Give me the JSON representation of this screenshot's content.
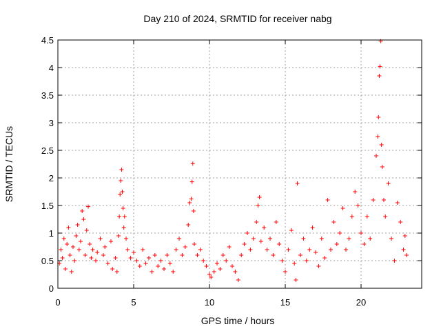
{
  "chart_data": {
    "type": "scatter",
    "title": "Day 210 of 2024, SRMTID for receiver nabg",
    "xlabel": "GPS time / hours",
    "ylabel": "SRMTID / TECUs",
    "xlim": [
      0,
      24
    ],
    "ylim": [
      0,
      4.5
    ],
    "xticks": [
      0,
      5,
      10,
      15,
      20
    ],
    "xtick_labels": [
      "0",
      "5",
      "10",
      "15",
      "20"
    ],
    "yticks": [
      0,
      0.5,
      1,
      1.5,
      2,
      2.5,
      3,
      3.5,
      4,
      4.5
    ],
    "ytick_labels": [
      "0",
      "0.5",
      "1",
      "1.5",
      "2",
      "2.5",
      "3",
      "3.5",
      "4",
      "4.5"
    ],
    "grid": true,
    "marker": "+",
    "color": "#ff0000",
    "series": [
      {
        "name": "SRMTID",
        "points": [
          [
            0.1,
            0.45
          ],
          [
            0.2,
            0.7
          ],
          [
            0.3,
            0.55
          ],
          [
            0.4,
            0.9
          ],
          [
            0.5,
            0.35
          ],
          [
            0.6,
            0.8
          ],
          [
            0.7,
            1.1
          ],
          [
            0.8,
            0.6
          ],
          [
            0.9,
            0.3
          ],
          [
            1.0,
            0.75
          ],
          [
            1.1,
            0.5
          ],
          [
            1.2,
            0.95
          ],
          [
            1.3,
            1.15
          ],
          [
            1.4,
            0.7
          ],
          [
            1.5,
            0.85
          ],
          [
            1.6,
            1.4
          ],
          [
            1.7,
            1.25
          ],
          [
            1.8,
            0.6
          ],
          [
            1.9,
            1.05
          ],
          [
            2.0,
            1.48
          ],
          [
            2.1,
            0.8
          ],
          [
            2.2,
            0.55
          ],
          [
            2.3,
            0.7
          ],
          [
            2.5,
            0.5
          ],
          [
            2.6,
            0.65
          ],
          [
            2.8,
            0.9
          ],
          [
            3.0,
            0.6
          ],
          [
            3.1,
            0.75
          ],
          [
            3.3,
            0.45
          ],
          [
            3.5,
            0.85
          ],
          [
            3.6,
            0.35
          ],
          [
            3.8,
            0.55
          ],
          [
            3.9,
            0.3
          ],
          [
            4.0,
            0.95
          ],
          [
            4.05,
            1.3
          ],
          [
            4.1,
            1.7
          ],
          [
            4.15,
            1.95
          ],
          [
            4.2,
            2.15
          ],
          [
            4.25,
            1.75
          ],
          [
            4.3,
            1.45
          ],
          [
            4.35,
            1.1
          ],
          [
            4.4,
            1.3
          ],
          [
            4.5,
            0.9
          ],
          [
            4.6,
            0.7
          ],
          [
            4.8,
            0.55
          ],
          [
            5.0,
            0.65
          ],
          [
            5.2,
            0.5
          ],
          [
            5.4,
            0.4
          ],
          [
            5.6,
            0.7
          ],
          [
            5.8,
            0.45
          ],
          [
            6.0,
            0.55
          ],
          [
            6.2,
            0.3
          ],
          [
            6.4,
            0.6
          ],
          [
            6.6,
            0.4
          ],
          [
            6.8,
            0.5
          ],
          [
            7.0,
            0.35
          ],
          [
            7.2,
            0.6
          ],
          [
            7.4,
            0.45
          ],
          [
            7.6,
            0.3
          ],
          [
            7.8,
            0.7
          ],
          [
            8.0,
            0.9
          ],
          [
            8.2,
            0.6
          ],
          [
            8.4,
            0.75
          ],
          [
            8.6,
            1.15
          ],
          [
            8.7,
            1.55
          ],
          [
            8.8,
            1.62
          ],
          [
            8.85,
            1.93
          ],
          [
            8.9,
            2.26
          ],
          [
            8.95,
            1.4
          ],
          [
            9.0,
            0.8
          ],
          [
            9.2,
            0.6
          ],
          [
            9.4,
            0.7
          ],
          [
            9.6,
            0.5
          ],
          [
            9.8,
            0.4
          ],
          [
            10.0,
            0.25
          ],
          [
            10.1,
            0.2
          ],
          [
            10.3,
            0.3
          ],
          [
            10.5,
            0.45
          ],
          [
            10.7,
            0.35
          ],
          [
            10.9,
            0.6
          ],
          [
            11.1,
            0.5
          ],
          [
            11.3,
            0.75
          ],
          [
            11.5,
            0.4
          ],
          [
            11.7,
            0.3
          ],
          [
            11.9,
            0.15
          ],
          [
            12.1,
            0.6
          ],
          [
            12.3,
            0.8
          ],
          [
            12.5,
            1.0
          ],
          [
            12.7,
            0.7
          ],
          [
            12.9,
            0.9
          ],
          [
            13.1,
            1.2
          ],
          [
            13.2,
            1.5
          ],
          [
            13.3,
            1.65
          ],
          [
            13.4,
            0.85
          ],
          [
            13.6,
            1.1
          ],
          [
            13.8,
            0.7
          ],
          [
            14.0,
            0.9
          ],
          [
            14.2,
            0.6
          ],
          [
            14.4,
            1.2
          ],
          [
            14.6,
            0.8
          ],
          [
            14.8,
            0.5
          ],
          [
            15.0,
            0.3
          ],
          [
            15.2,
            0.7
          ],
          [
            15.4,
            1.05
          ],
          [
            15.6,
            0.45
          ],
          [
            15.7,
            0.15
          ],
          [
            15.8,
            1.9
          ],
          [
            16.0,
            0.6
          ],
          [
            16.2,
            0.9
          ],
          [
            16.4,
            0.5
          ],
          [
            16.6,
            0.7
          ],
          [
            16.8,
            1.1
          ],
          [
            17.0,
            0.65
          ],
          [
            17.2,
            0.4
          ],
          [
            17.4,
            0.9
          ],
          [
            17.6,
            0.55
          ],
          [
            17.8,
            1.6
          ],
          [
            18.0,
            0.7
          ],
          [
            18.2,
            1.2
          ],
          [
            18.4,
            0.8
          ],
          [
            18.6,
            1.0
          ],
          [
            18.8,
            1.45
          ],
          [
            19.0,
            0.7
          ],
          [
            19.2,
            0.9
          ],
          [
            19.4,
            1.3
          ],
          [
            19.6,
            1.75
          ],
          [
            19.8,
            1.5
          ],
          [
            20.0,
            1.0
          ],
          [
            20.2,
            0.8
          ],
          [
            20.4,
            1.3
          ],
          [
            20.6,
            0.9
          ],
          [
            20.8,
            1.6
          ],
          [
            21.0,
            2.4
          ],
          [
            21.1,
            2.75
          ],
          [
            21.15,
            3.1
          ],
          [
            21.2,
            3.85
          ],
          [
            21.25,
            4.02
          ],
          [
            21.3,
            4.48
          ],
          [
            21.35,
            2.6
          ],
          [
            21.4,
            2.2
          ],
          [
            21.5,
            1.6
          ],
          [
            21.6,
            1.3
          ],
          [
            21.8,
            1.9
          ],
          [
            22.0,
            0.9
          ],
          [
            22.2,
            0.5
          ],
          [
            22.4,
            1.55
          ],
          [
            22.6,
            1.2
          ],
          [
            22.8,
            0.7
          ],
          [
            22.9,
            0.95
          ],
          [
            23.0,
            0.6
          ]
        ]
      }
    ]
  }
}
